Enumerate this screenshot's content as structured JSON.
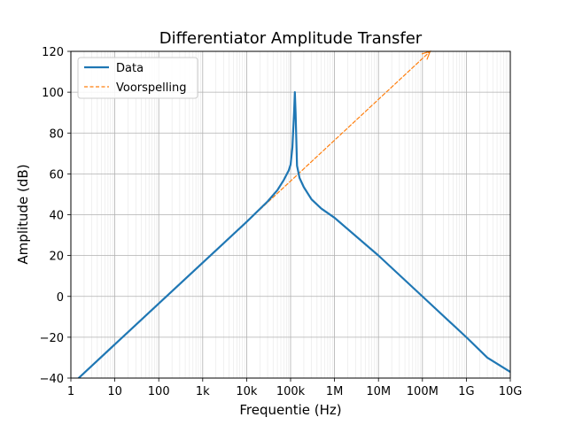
{
  "chart_data": {
    "type": "line",
    "title": "Differentiator Amplitude Transfer",
    "xlabel": "Frequentie (Hz)",
    "ylabel": "Amplitude (dB)",
    "xscale": "log",
    "xlim": [
      1,
      10000000000
    ],
    "ylim": [
      -40,
      120
    ],
    "grid": true,
    "legend_position": "top-left",
    "x_ticks": [
      {
        "value": 1,
        "label": "1"
      },
      {
        "value": 10,
        "label": "10"
      },
      {
        "value": 100,
        "label": "100"
      },
      {
        "value": 1000,
        "label": "1k"
      },
      {
        "value": 10000,
        "label": "10k"
      },
      {
        "value": 100000,
        "label": "100k"
      },
      {
        "value": 1000000,
        "label": "1M"
      },
      {
        "value": 10000000,
        "label": "10M"
      },
      {
        "value": 100000000,
        "label": "100M"
      },
      {
        "value": 1000000000,
        "label": "1G"
      },
      {
        "value": 10000000000,
        "label": "10G"
      }
    ],
    "y_ticks": [
      {
        "value": -40,
        "label": "−40"
      },
      {
        "value": -20,
        "label": "−20"
      },
      {
        "value": 0,
        "label": "0"
      },
      {
        "value": 20,
        "label": "20"
      },
      {
        "value": 40,
        "label": "40"
      },
      {
        "value": 60,
        "label": "60"
      },
      {
        "value": 80,
        "label": "80"
      },
      {
        "value": 100,
        "label": "100"
      },
      {
        "value": 120,
        "label": "120"
      }
    ],
    "series": [
      {
        "name": "Data",
        "color": "#1f77b4",
        "style": "solid",
        "x": [
          1.5,
          10,
          100,
          1000,
          10000,
          30000,
          50000,
          70000,
          90000,
          100000,
          110000,
          120000,
          125000,
          130000,
          140000,
          160000,
          200000,
          300000,
          500000,
          1000000,
          10000000,
          100000000,
          1000000000,
          3000000000,
          10000000000
        ],
        "y": [
          -40,
          -23.5,
          -3.5,
          16.5,
          36.5,
          46.5,
          52,
          57,
          61.5,
          64.5,
          73,
          90,
          100,
          90,
          64,
          58,
          53.5,
          47.5,
          43,
          38.5,
          20,
          0,
          -20,
          -30,
          -37
        ]
      },
      {
        "name": "Voorspelling",
        "color": "#ff7f0e",
        "style": "dashed",
        "arrow_end": true,
        "x": [
          1.5,
          150000000
        ],
        "y": [
          -40,
          120
        ]
      }
    ]
  }
}
